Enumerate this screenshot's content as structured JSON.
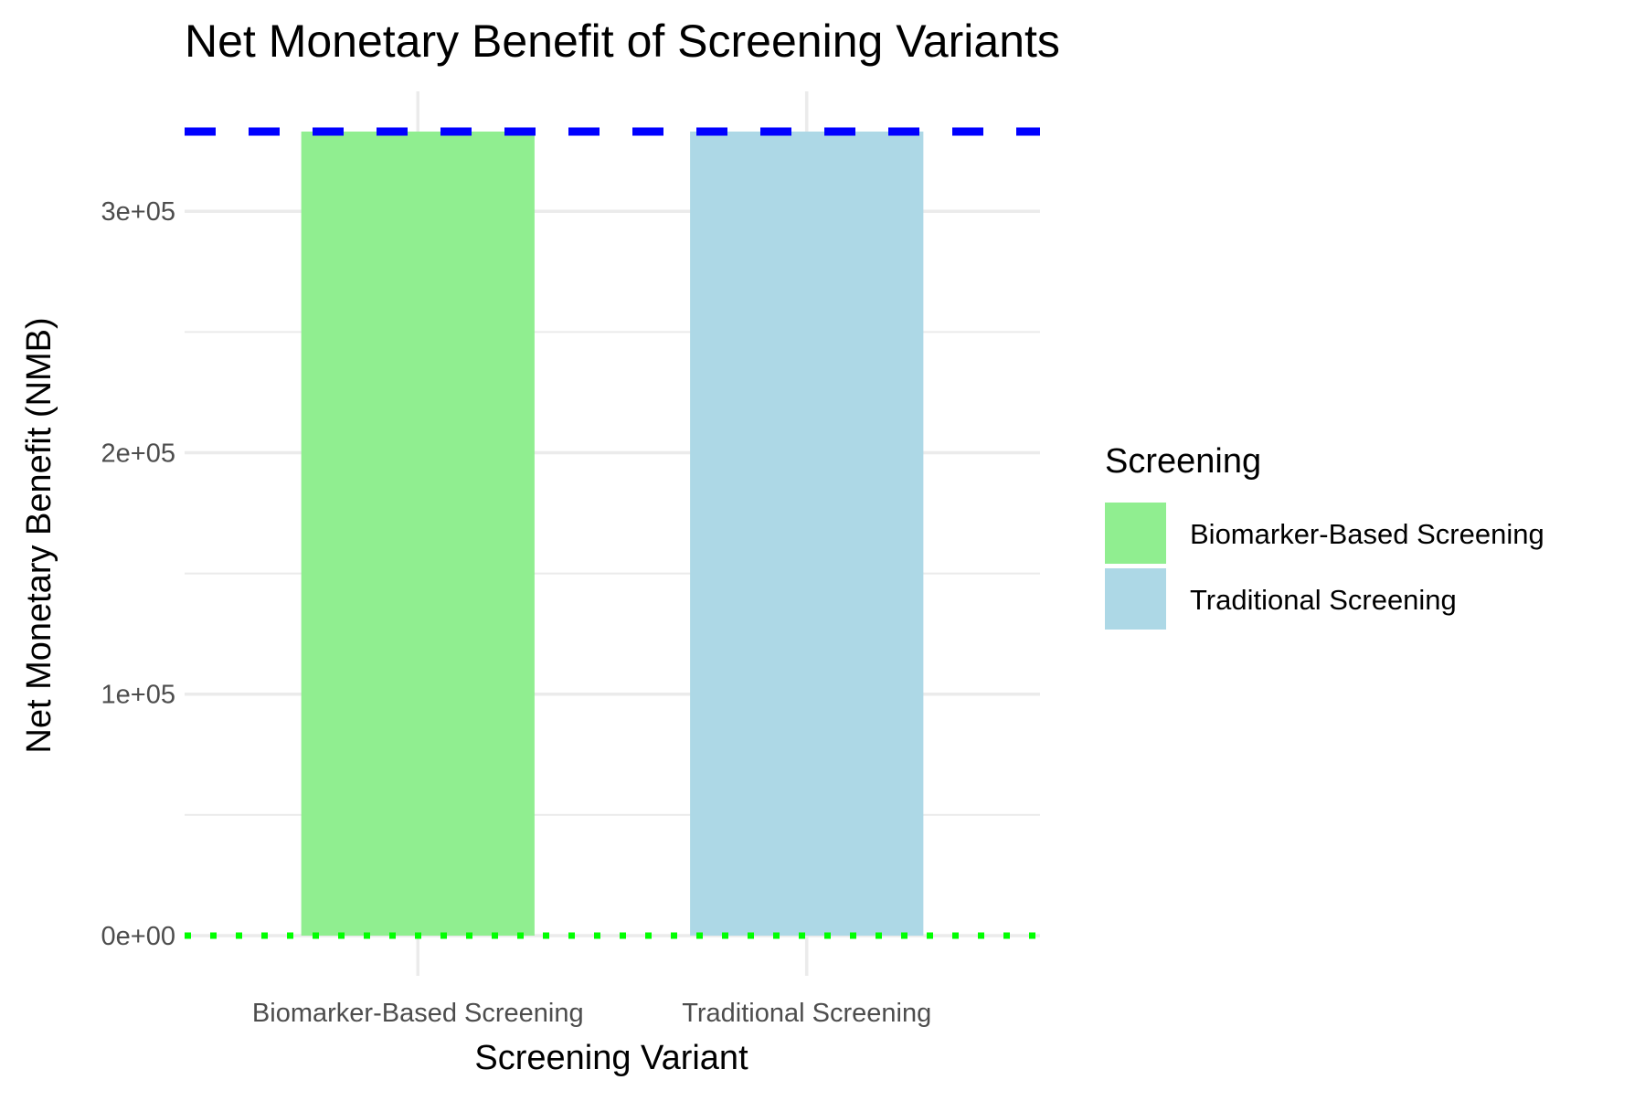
{
  "chart_data": {
    "type": "bar",
    "title": "Net Monetary Benefit of Screening Variants",
    "xlabel": "Screening Variant",
    "ylabel": "Net Monetary Benefit (NMB)",
    "categories": [
      "Biomarker-Based Screening",
      "Traditional Screening"
    ],
    "values": [
      333000,
      333000
    ],
    "colors": [
      "#90EE90",
      "#ADD8E6"
    ],
    "ylim": [
      -16650,
      349650
    ],
    "yticks": [
      0,
      100000,
      200000,
      300000
    ],
    "ytick_labels": [
      "0e+00",
      "1e+05",
      "2e+05",
      "3e+05"
    ],
    "grid": true,
    "reference_lines": [
      {
        "value": 333000,
        "style": "dashed",
        "color": "#0000FF"
      },
      {
        "value": 0,
        "style": "dotted",
        "color": "#00FF00"
      }
    ],
    "legend": {
      "title": "Screening",
      "placement": "right",
      "entries": [
        "Biomarker-Based Screening",
        "Traditional Screening"
      ]
    }
  }
}
